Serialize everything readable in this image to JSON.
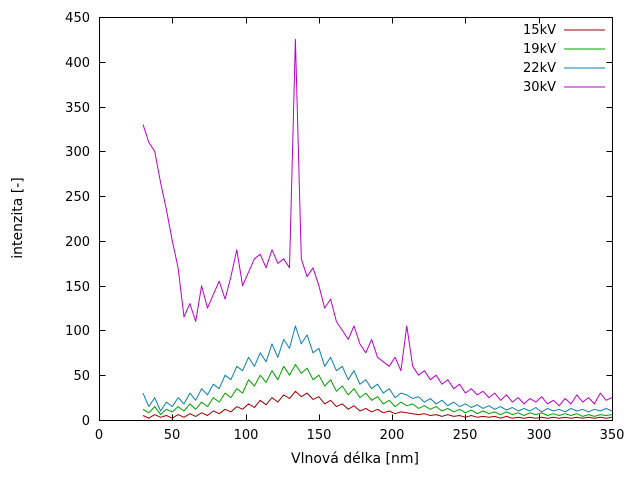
{
  "chart": {
    "xlabel": "Vlnová délka [nm]",
    "ylabel": "intenzita [-]",
    "x_ticks": [
      0,
      50,
      100,
      150,
      200,
      250,
      300,
      350
    ],
    "y_ticks": [
      0,
      50,
      100,
      150,
      200,
      250,
      300,
      350,
      400,
      450
    ],
    "xlim": [
      0,
      350
    ],
    "ylim": [
      0,
      450
    ],
    "background": "#ffffff",
    "axis_color": "#000000"
  },
  "chart_data": {
    "type": "line",
    "grid": false,
    "legend_position": "top-right",
    "x": [
      30,
      34,
      38,
      42,
      46,
      50,
      54,
      58,
      62,
      66,
      70,
      74,
      78,
      82,
      86,
      90,
      94,
      98,
      102,
      106,
      110,
      114,
      118,
      122,
      126,
      130,
      134,
      138,
      142,
      146,
      150,
      154,
      158,
      162,
      166,
      170,
      174,
      178,
      182,
      186,
      190,
      194,
      198,
      202,
      206,
      210,
      214,
      218,
      222,
      226,
      230,
      234,
      238,
      242,
      246,
      250,
      254,
      258,
      262,
      266,
      270,
      274,
      278,
      282,
      286,
      290,
      294,
      298,
      302,
      306,
      310,
      314,
      318,
      322,
      326,
      330,
      334,
      338,
      342,
      346,
      350
    ],
    "series": [
      {
        "name": "15kV",
        "color": "#a00000",
        "values": [
          5,
          2,
          6,
          3,
          5,
          2,
          6,
          3,
          7,
          4,
          8,
          5,
          10,
          7,
          12,
          9,
          15,
          12,
          18,
          14,
          22,
          17,
          25,
          20,
          28,
          24,
          32,
          26,
          30,
          23,
          26,
          18,
          22,
          15,
          18,
          12,
          16,
          10,
          13,
          9,
          12,
          8,
          10,
          7,
          9,
          8,
          7,
          6,
          7,
          5,
          6,
          4,
          6,
          4,
          5,
          3,
          5,
          3,
          4,
          3,
          4,
          2,
          4,
          2,
          3,
          2,
          3,
          2,
          3,
          2,
          3,
          2,
          3,
          2,
          3,
          2,
          3,
          2,
          3,
          2,
          3
        ]
      },
      {
        "name": "19kV",
        "color": "#00a000",
        "values": [
          12,
          8,
          15,
          6,
          12,
          9,
          15,
          10,
          18,
          12,
          20,
          15,
          25,
          20,
          30,
          25,
          35,
          30,
          45,
          38,
          50,
          42,
          55,
          45,
          60,
          50,
          62,
          52,
          58,
          45,
          50,
          38,
          45,
          32,
          38,
          28,
          35,
          25,
          30,
          22,
          26,
          18,
          22,
          15,
          20,
          16,
          18,
          13,
          16,
          12,
          15,
          10,
          13,
          9,
          12,
          8,
          11,
          7,
          10,
          7,
          9,
          6,
          9,
          6,
          8,
          5,
          8,
          6,
          8,
          5,
          7,
          5,
          7,
          5,
          7,
          4,
          6,
          4,
          6,
          5,
          6
        ]
      },
      {
        "name": "22kV",
        "color": "#0e7fb0",
        "values": [
          30,
          15,
          25,
          10,
          20,
          15,
          25,
          18,
          30,
          22,
          35,
          28,
          40,
          35,
          50,
          45,
          60,
          55,
          70,
          60,
          75,
          65,
          85,
          70,
          90,
          80,
          105,
          85,
          95,
          75,
          80,
          60,
          70,
          55,
          60,
          45,
          55,
          40,
          45,
          35,
          40,
          30,
          35,
          25,
          30,
          28,
          24,
          26,
          20,
          24,
          18,
          22,
          16,
          20,
          15,
          18,
          14,
          17,
          13,
          16,
          12,
          15,
          11,
          14,
          10,
          13,
          10,
          14,
          9,
          13,
          10,
          12,
          9,
          13,
          10,
          12,
          9,
          12,
          10,
          13,
          10
        ]
      },
      {
        "name": "30kV",
        "color": "#bb00cc",
        "values": [
          330,
          310,
          300,
          265,
          235,
          200,
          170,
          115,
          130,
          110,
          150,
          125,
          140,
          155,
          135,
          160,
          190,
          150,
          165,
          180,
          185,
          170,
          190,
          175,
          180,
          170,
          425,
          180,
          160,
          170,
          150,
          125,
          135,
          110,
          100,
          90,
          105,
          85,
          75,
          90,
          70,
          65,
          60,
          70,
          55,
          105,
          60,
          50,
          55,
          45,
          50,
          40,
          45,
          35,
          40,
          30,
          35,
          28,
          32,
          25,
          30,
          22,
          28,
          20,
          25,
          18,
          24,
          20,
          26,
          18,
          22,
          16,
          24,
          18,
          28,
          20,
          25,
          18,
          30,
          22,
          25
        ]
      }
    ]
  }
}
